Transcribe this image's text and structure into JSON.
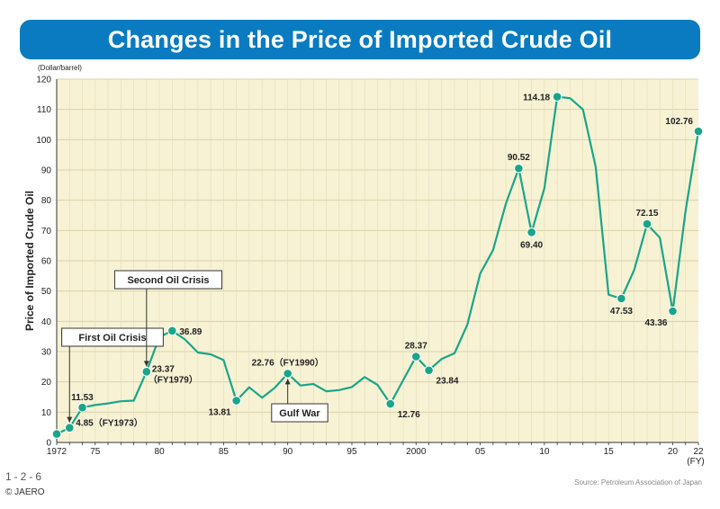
{
  "title": "Changes in the Price of Imported Crude Oil",
  "figure_number": "1-2-6",
  "copyright": "© JAERO",
  "source": "Source: Petroleum Association of Japan",
  "colors": {
    "banner": "#0a7bc0",
    "plot_background": "#f7f2d4",
    "line": "#1aa58a",
    "marker": "#1aa58a",
    "axis": "#333333"
  },
  "chart_data": {
    "type": "line",
    "title": "Changes in the Price of Imported Crude Oil",
    "ylabel": "Price of Imported Crude Oil",
    "yunit": "(Dollar/barrel)",
    "xunit": "(FY)",
    "ylim": [
      0,
      120
    ],
    "yticks": [
      0,
      10,
      20,
      30,
      40,
      50,
      60,
      70,
      80,
      90,
      100,
      110,
      120
    ],
    "xlim": [
      1972,
      2022
    ],
    "xticks": [
      {
        "value": 1972,
        "label": "1972"
      },
      {
        "value": 1975,
        "label": "75"
      },
      {
        "value": 1980,
        "label": "80"
      },
      {
        "value": 1985,
        "label": "85"
      },
      {
        "value": 1990,
        "label": "90"
      },
      {
        "value": 1995,
        "label": "95"
      },
      {
        "value": 2000,
        "label": "2000"
      },
      {
        "value": 2005,
        "label": "05"
      },
      {
        "value": 2010,
        "label": "10"
      },
      {
        "value": 2015,
        "label": "15"
      },
      {
        "value": 2020,
        "label": "20"
      },
      {
        "value": 2022,
        "label": "22"
      }
    ],
    "grid": true,
    "series": [
      {
        "x": [
          1972,
          1973,
          1974,
          1975,
          1976,
          1977,
          1978,
          1979,
          1980,
          1981,
          1982,
          1983,
          1984,
          1985,
          1986,
          1987,
          1988,
          1989,
          1990,
          1991,
          1992,
          1993,
          1994,
          1995,
          1996,
          1997,
          1998,
          1999,
          2000,
          2001,
          2002,
          2003,
          2004,
          2005,
          2006,
          2007,
          2008,
          2009,
          2010,
          2011,
          2012,
          2013,
          2014,
          2015,
          2016,
          2017,
          2018,
          2019,
          2020,
          2021,
          2022
        ],
        "y": [
          2.8,
          4.85,
          11.53,
          12.4,
          12.9,
          13.6,
          13.8,
          23.37,
          34.8,
          36.89,
          34.0,
          29.7,
          29.1,
          27.2,
          13.81,
          18.2,
          14.8,
          18.1,
          22.76,
          18.8,
          19.3,
          16.9,
          17.3,
          18.3,
          21.6,
          19.0,
          12.76,
          20.6,
          28.37,
          23.84,
          27.6,
          29.5,
          38.9,
          55.8,
          63.5,
          78.9,
          90.52,
          69.4,
          84.0,
          114.18,
          113.7,
          110.0,
          91.0,
          48.8,
          47.53,
          57.0,
          72.15,
          67.6,
          43.36,
          76.4,
          102.76
        ]
      }
    ],
    "markers": [
      {
        "x": 1972,
        "y": 2.8
      },
      {
        "x": 1973,
        "y": 4.85
      },
      {
        "x": 1974,
        "y": 11.53
      },
      {
        "x": 1979,
        "y": 23.37
      },
      {
        "x": 1981,
        "y": 36.89
      },
      {
        "x": 1986,
        "y": 13.81
      },
      {
        "x": 1990,
        "y": 22.76
      },
      {
        "x": 1998,
        "y": 12.76
      },
      {
        "x": 2000,
        "y": 28.37
      },
      {
        "x": 2001,
        "y": 23.84
      },
      {
        "x": 2008,
        "y": 90.52
      },
      {
        "x": 2009,
        "y": 69.4
      },
      {
        "x": 2011,
        "y": 114.18
      },
      {
        "x": 2016,
        "y": 47.53
      },
      {
        "x": 2018,
        "y": 72.15
      },
      {
        "x": 2020,
        "y": 43.36
      },
      {
        "x": 2022,
        "y": 102.76
      }
    ],
    "data_labels": [
      {
        "x": 1973,
        "y": 4.85,
        "text": "4.85（FY1973）",
        "pos": "right"
      },
      {
        "x": 1974,
        "y": 11.53,
        "text": "11.53",
        "pos": "above"
      },
      {
        "x": 1979,
        "y": 23.37,
        "text": "23.37",
        "pos": "right"
      },
      {
        "x": 1979,
        "y": 23.37,
        "text": "（FY1979）",
        "pos": "right-below"
      },
      {
        "x": 1981,
        "y": 36.89,
        "text": "36.89",
        "pos": "right"
      },
      {
        "x": 1986,
        "y": 13.81,
        "text": "13.81",
        "pos": "left-below"
      },
      {
        "x": 1990,
        "y": 22.76,
        "text": "22.76（FY1990）",
        "pos": "above"
      },
      {
        "x": 1998,
        "y": 12.76,
        "text": "12.76",
        "pos": "right-below"
      },
      {
        "x": 2000,
        "y": 28.37,
        "text": "28.37",
        "pos": "above"
      },
      {
        "x": 2001,
        "y": 23.84,
        "text": "23.84",
        "pos": "right-below"
      },
      {
        "x": 2008,
        "y": 90.52,
        "text": "90.52",
        "pos": "above"
      },
      {
        "x": 2009,
        "y": 69.4,
        "text": "69.40",
        "pos": "below"
      },
      {
        "x": 2011,
        "y": 114.18,
        "text": "114.18",
        "pos": "left"
      },
      {
        "x": 2016,
        "y": 47.53,
        "text": "47.53",
        "pos": "below"
      },
      {
        "x": 2018,
        "y": 72.15,
        "text": "72.15",
        "pos": "above"
      },
      {
        "x": 2020,
        "y": 43.36,
        "text": "43.36",
        "pos": "left-below"
      },
      {
        "x": 2022,
        "y": 102.76,
        "text": "102.76",
        "pos": "left-above"
      }
    ],
    "annotations": [
      {
        "text": "First Oil Crisis",
        "target_x": 1973,
        "target_y": 4.85,
        "box": "above"
      },
      {
        "text": "Second Oil Crisis",
        "target_x": 1979,
        "target_y": 23.37,
        "box": "above"
      },
      {
        "text": "Gulf War",
        "target_x": 1990,
        "target_y": 22.76,
        "box": "below"
      }
    ]
  }
}
